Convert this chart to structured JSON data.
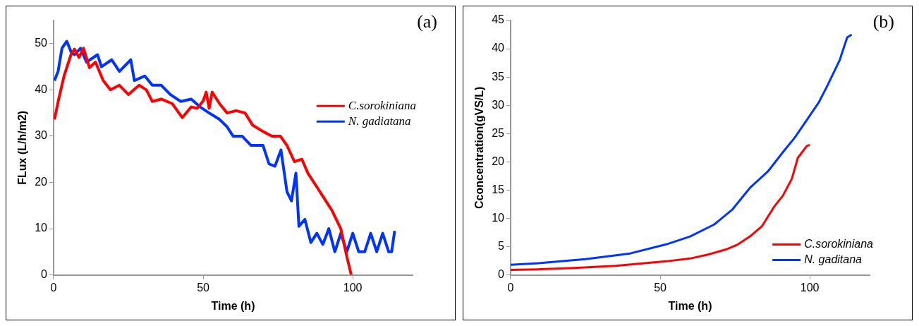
{
  "chart_data": [
    {
      "type": "line",
      "xlabel": "Time (h)",
      "ylabel": "FLux (L/h/m2)",
      "annotations": [
        "(a)"
      ],
      "xlim": [
        0,
        120
      ],
      "xticks": [
        0,
        50,
        100
      ],
      "ylim": [
        0,
        55
      ],
      "yticks": [
        0,
        10,
        20,
        30,
        40,
        50
      ],
      "grid": false,
      "legend": "right",
      "marker": "none",
      "line_style": "solid",
      "series": [
        {
          "name": "C.sorokiniana",
          "color": "#ff0000",
          "x": [
            0.3,
            1.7,
            3.5,
            5.8,
            7,
            8.5,
            10,
            12,
            14,
            16.6,
            19,
            22,
            25,
            28.6,
            31,
            33,
            36,
            39.7,
            43,
            46,
            48,
            50,
            51,
            52,
            53,
            55.5,
            58,
            61,
            64,
            66.5,
            70,
            73,
            75.8,
            78,
            80.5,
            83,
            85,
            88,
            90,
            93,
            96,
            98,
            99.5
          ],
          "values": [
            33.6,
            38,
            43,
            47.6,
            48.8,
            47,
            49,
            44.8,
            46,
            42,
            40,
            41,
            39,
            41,
            40,
            37.5,
            38,
            37,
            34,
            36.3,
            36,
            37.6,
            39.5,
            36,
            39.5,
            37,
            35,
            35.5,
            35,
            32.4,
            31,
            30,
            30,
            28,
            24.5,
            25,
            22,
            19,
            17,
            14,
            10,
            4,
            0
          ]
        },
        {
          "name": "N. gadiatana",
          "color": "#0033ff",
          "x": [
            0.3,
            1.5,
            2.8,
            4.4,
            6,
            7,
            9,
            11,
            14.7,
            16,
            19.4,
            22,
            25.8,
            27,
            30.5,
            33,
            36,
            39,
            42.5,
            46,
            49,
            52,
            55.5,
            58,
            60,
            63,
            66,
            70,
            72,
            74,
            76,
            78,
            79.5,
            81,
            82,
            84,
            86,
            88,
            90,
            92,
            94,
            96,
            98,
            100,
            102,
            104,
            106,
            108,
            110,
            112,
            113,
            114
          ],
          "values": [
            42,
            44,
            49,
            50.5,
            48,
            47.6,
            49,
            46,
            47.6,
            45,
            46.5,
            44,
            46.5,
            42,
            43,
            41,
            41,
            39,
            37.5,
            38,
            36.3,
            35,
            33.6,
            32,
            30,
            30,
            28,
            28,
            24,
            23.5,
            27,
            18,
            16,
            22,
            10.5,
            12,
            7,
            9,
            6.6,
            10,
            5,
            9,
            5,
            9,
            5,
            5,
            9,
            5,
            9,
            5,
            5,
            9.5
          ]
        }
      ]
    },
    {
      "type": "line",
      "xlabel": "Time (h)",
      "ylabel": "Cconcentration(gVS/L)",
      "annotations": [
        "(b)"
      ],
      "xlim": [
        0,
        120
      ],
      "xticks": [
        0,
        50,
        100
      ],
      "ylim": [
        0,
        45
      ],
      "yticks": [
        0,
        5,
        10,
        15,
        20,
        25,
        30,
        35,
        40,
        45
      ],
      "grid": false,
      "legend": "bottom right",
      "marker": "none",
      "line_style": "solid",
      "series": [
        {
          "name": "C.sorokiniana",
          "color": "#ff0000",
          "x": [
            0,
            10,
            20,
            35,
            52,
            60,
            66,
            72,
            76,
            80,
            84,
            88,
            91,
            94,
            96,
            99,
            100
          ],
          "values": [
            0.9,
            1,
            1.2,
            1.6,
            2.4,
            2.9,
            3.6,
            4.5,
            5.4,
            6.8,
            8.6,
            12,
            14,
            17,
            20.7,
            22.8,
            23
          ]
        },
        {
          "name": "N. gaditana",
          "color": "#0033ff",
          "x": [
            0,
            10,
            25,
            40,
            52,
            60,
            68,
            74,
            80,
            86,
            91,
            95,
            99,
            103,
            106,
            110,
            112.5,
            114
          ],
          "values": [
            1.8,
            2.1,
            2.8,
            3.8,
            5.4,
            6.8,
            8.9,
            11.5,
            15.4,
            18.3,
            21.7,
            24.3,
            27.4,
            30.5,
            33.6,
            38,
            42,
            42.5
          ]
        }
      ]
    }
  ]
}
